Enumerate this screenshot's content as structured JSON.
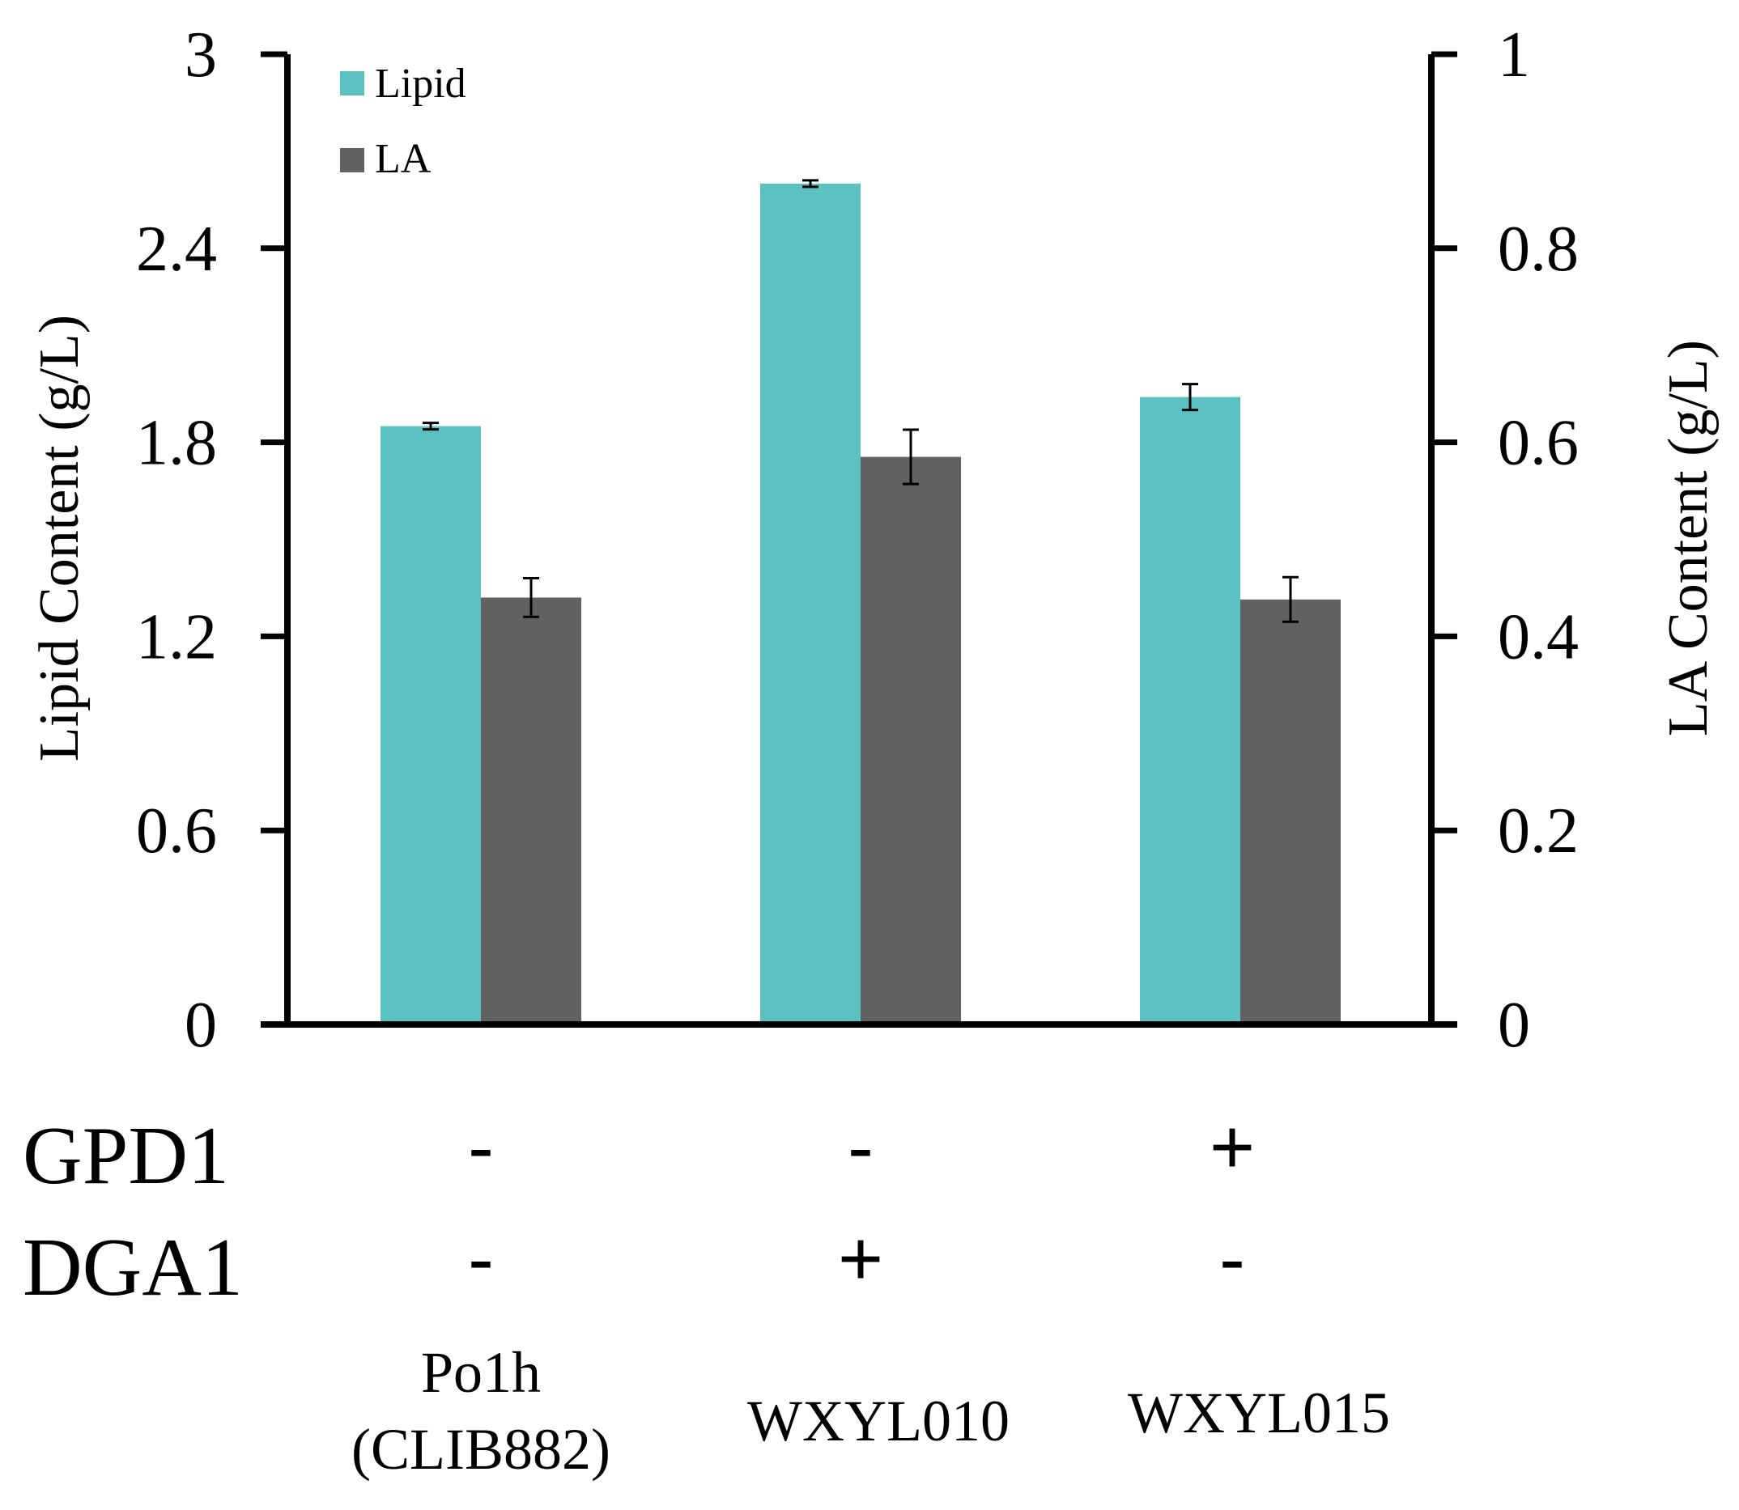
{
  "chart_data": {
    "type": "bar",
    "categories": [
      {
        "name": "Po1h",
        "sub": "(CLIB882)"
      },
      {
        "name": "WXYL010",
        "sub": ""
      },
      {
        "name": "WXYL015",
        "sub": ""
      }
    ],
    "series": [
      {
        "name": "Lipid",
        "axis": "left",
        "color": "#5bc2c1",
        "values": [
          1.85,
          2.6,
          1.94
        ],
        "errors": [
          0.01,
          0.01,
          0.04
        ]
      },
      {
        "name": "LA",
        "axis": "right",
        "color": "#616161",
        "values": [
          0.44,
          0.585,
          0.438
        ],
        "errors": [
          0.02,
          0.028,
          0.023
        ]
      }
    ],
    "ylabel_left": "Lipid Content (g/L)",
    "ylabel_right": "LA Content (g/L)",
    "ylim_left": [
      0,
      3
    ],
    "ylim_right": [
      0,
      1
    ],
    "yticks_left": [
      "0",
      "0.6",
      "1.2",
      "1.8",
      "2.4",
      "3"
    ],
    "yticks_right": [
      "0",
      "0.2",
      "0.4",
      "0.6",
      "0.8",
      "1"
    ],
    "yticks_left_values": [
      0,
      0.6,
      1.2,
      1.8,
      2.4,
      3
    ],
    "yticks_right_values": [
      0,
      0.2,
      0.4,
      0.6,
      0.8,
      1
    ],
    "legend": [
      "Lipid",
      "LA"
    ],
    "legend_position": "top-left"
  },
  "genotype_table": {
    "rows": [
      {
        "label": "GPD1",
        "signs": [
          "-",
          "-",
          "+"
        ]
      },
      {
        "label": "DGA1",
        "signs": [
          "-",
          "+",
          "-"
        ]
      }
    ]
  }
}
